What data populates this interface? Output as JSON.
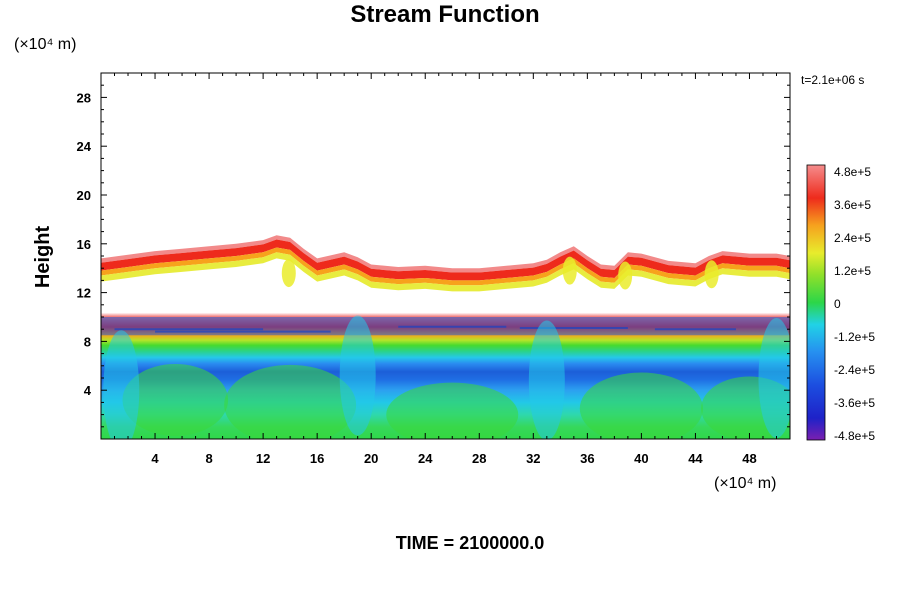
{
  "chart_data": {
    "type": "heatmap",
    "title": "Stream Function",
    "ylabel": "Height",
    "xlabel": "",
    "x_unit_label": "(×10⁴ m)",
    "y_unit_label": "(×10⁴ m)",
    "time_stamp": "t=2.1e+06 s",
    "footer": "TIME = 2100000.0",
    "xlim": [
      0,
      51
    ],
    "ylim": [
      0,
      30
    ],
    "xticks": [
      4,
      8,
      12,
      16,
      20,
      24,
      28,
      32,
      36,
      40,
      44,
      48
    ],
    "yticks": [
      4,
      8,
      12,
      16,
      20,
      24,
      28
    ],
    "colorbar": {
      "min": -480000,
      "max": 480000,
      "labels": [
        "4.8e+5",
        "3.6e+5",
        "2.4e+5",
        "1.2e+5",
        "0",
        "-1.2e+5",
        "-2.4e+5",
        "-3.6e+5",
        "-4.8e+5"
      ],
      "values": [
        480000,
        360000,
        240000,
        120000,
        0,
        -120000,
        -240000,
        -360000,
        -480000
      ]
    },
    "field": {
      "top_boundary_x": [
        0,
        2,
        4,
        6,
        8,
        10,
        12,
        13,
        14,
        15,
        16,
        18,
        19,
        20,
        22,
        24,
        26,
        28,
        30,
        32,
        33,
        34,
        35,
        36,
        37,
        38,
        39,
        40,
        42,
        44,
        45,
        46,
        48,
        50,
        51
      ],
      "top_boundary_height": [
        14.8,
        15.1,
        15.4,
        15.6,
        15.8,
        16.0,
        16.3,
        16.7,
        16.5,
        15.6,
        14.8,
        15.3,
        14.9,
        14.3,
        14.1,
        14.2,
        14.0,
        14.0,
        14.2,
        14.4,
        14.7,
        15.3,
        15.8,
        15.0,
        14.3,
        14.2,
        15.3,
        15.2,
        14.6,
        14.4,
        15.0,
        15.4,
        15.2,
        15.2,
        15.0
      ],
      "positive_band_height": [
        12.5,
        14.5
      ],
      "minimum_band_height": [
        8.5,
        10
      ],
      "minimum_value_approx": -300000,
      "lower_region_value_approx": 0
    }
  }
}
